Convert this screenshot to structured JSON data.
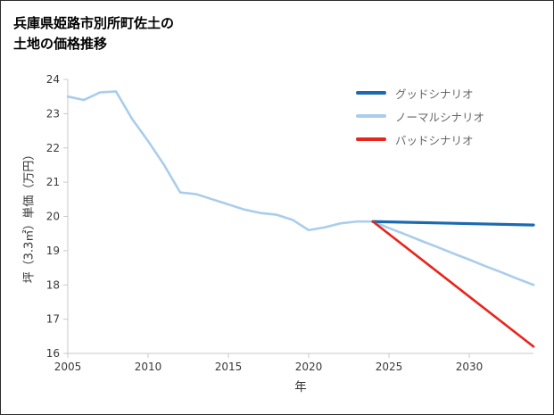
{
  "title": {
    "line1": "兵庫県姫路市別所町佐土の",
    "line2": "土地の価格推移"
  },
  "chart_data": {
    "type": "line",
    "title": "兵庫県姫路市別所町佐土の土地の価格推移",
    "xlabel": "年",
    "ylabel": "坪（3.3㎡）単価（万円）",
    "xlim": [
      2005,
      2034
    ],
    "ylim": [
      16,
      24
    ],
    "xticks": [
      2005,
      2010,
      2015,
      2020,
      2025,
      2030
    ],
    "yticks": [
      16,
      17,
      18,
      19,
      20,
      21,
      22,
      23,
      24
    ],
    "grid": false,
    "legend_position": "upper right",
    "series": [
      {
        "name": "グッドシナリオ",
        "color": "#1b6ab1",
        "width": 3.2,
        "z": 2,
        "x": [
          2024,
          2034
        ],
        "values": [
          19.85,
          19.75
        ]
      },
      {
        "name": "ノーマルシナリオ",
        "color": "#a9cdec",
        "width": 2.6,
        "z": 1,
        "x": [
          2005,
          2006,
          2007,
          2008,
          2009,
          2010,
          2011,
          2012,
          2013,
          2014,
          2015,
          2016,
          2017,
          2018,
          2019,
          2020,
          2021,
          2022,
          2023,
          2024,
          2025,
          2026,
          2027,
          2028,
          2029,
          2030,
          2031,
          2032,
          2033,
          2034
        ],
        "values": [
          23.5,
          23.4,
          23.62,
          23.65,
          22.85,
          22.2,
          21.5,
          20.7,
          20.65,
          20.5,
          20.35,
          20.2,
          20.1,
          20.05,
          19.9,
          19.6,
          19.68,
          19.8,
          19.85,
          19.85,
          19.66,
          19.48,
          19.29,
          19.11,
          18.92,
          18.74,
          18.55,
          18.37,
          18.18,
          18.0
        ]
      },
      {
        "name": "バッドシナリオ",
        "color": "#e8251c",
        "width": 2.6,
        "z": 3,
        "x": [
          2024,
          2034
        ],
        "values": [
          19.85,
          16.2
        ]
      }
    ]
  }
}
